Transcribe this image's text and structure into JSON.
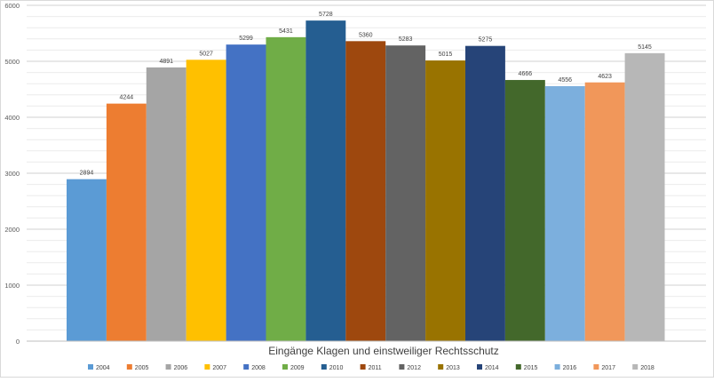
{
  "chart_data": {
    "type": "bar",
    "title": "Eingänge Klagen und einstweiliger Rechtsschutz",
    "xlabel": "",
    "ylabel": "",
    "ylim": [
      0,
      6000
    ],
    "yticks": [
      0,
      1000,
      2000,
      3000,
      4000,
      5000,
      6000
    ],
    "grid": true,
    "legend": "bottom",
    "data_labels": true,
    "series": [
      {
        "name": "2004",
        "value": 2894,
        "color": "#5b9bd5"
      },
      {
        "name": "2005",
        "value": 4244,
        "color": "#ed7d31"
      },
      {
        "name": "2006",
        "value": 4891,
        "color": "#a5a5a5"
      },
      {
        "name": "2007",
        "value": 5027,
        "color": "#ffc000"
      },
      {
        "name": "2008",
        "value": 5299,
        "color": "#4472c4"
      },
      {
        "name": "2009",
        "value": 5431,
        "color": "#70ad47"
      },
      {
        "name": "2010",
        "value": 5728,
        "color": "#255e91"
      },
      {
        "name": "2011",
        "value": 5360,
        "color": "#9e480e"
      },
      {
        "name": "2012",
        "value": 5283,
        "color": "#636363"
      },
      {
        "name": "2013",
        "value": 5015,
        "color": "#997300"
      },
      {
        "name": "2014",
        "value": 5275,
        "color": "#264478"
      },
      {
        "name": "2015",
        "value": 4666,
        "color": "#43682b"
      },
      {
        "name": "2016",
        "value": 4556,
        "color": "#7cafdd"
      },
      {
        "name": "2017",
        "value": 4623,
        "color": "#f1975a"
      },
      {
        "name": "2018",
        "value": 5145,
        "color": "#b7b7b7"
      }
    ]
  }
}
